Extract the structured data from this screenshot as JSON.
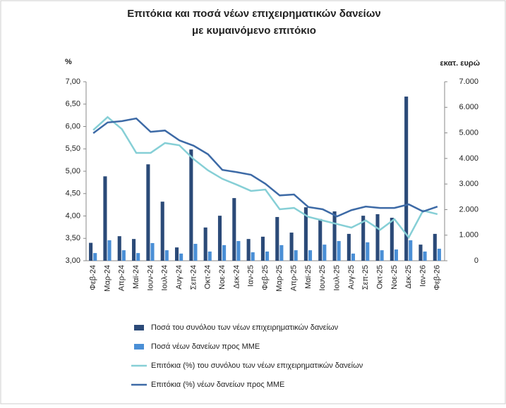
{
  "chart_data": {
    "type": "bar-line",
    "title": "Επιτόκια και ποσά νέων επιχειρηματικών δανείων με κυμαινόμενο επιτόκιο",
    "y_label": "%",
    "y2_label": "εκατ. ευρώ",
    "categories": [
      "Φεβ-24",
      "Μαρ-24",
      "Απρ-24",
      "Μαϊ-24",
      "Ιουν-24",
      "Ιουλ-24",
      "Αυγ-24",
      "Σεπ-24",
      "Οκτ-24",
      "Νοε-24",
      "Δεκ-24",
      "Ιαν-25",
      "Φεβ-25",
      "Μαρ-25",
      "Απρ-25",
      "Μαϊ-25",
      "Ιουν-25",
      "Ιουλ-25",
      "Αυγ-25",
      "Σεπ-25",
      "Οκτ-25",
      "Νοε-25",
      "Δεκ-25",
      "Ιαν-26",
      "Φεβ-26"
    ],
    "ylim": [
      3,
      7
    ],
    "yticks": [
      {
        "value": 3,
        "label": "3,00"
      },
      {
        "value": 3.5,
        "label": "3,50"
      },
      {
        "value": 4,
        "label": "4,00"
      },
      {
        "value": 4.5,
        "label": "4,50"
      },
      {
        "value": 5,
        "label": "5,00"
      },
      {
        "value": 5.5,
        "label": "5,50"
      },
      {
        "value": 6,
        "label": "6,00"
      },
      {
        "value": 6.5,
        "label": "6,50"
      },
      {
        "value": 7,
        "label": "7,00"
      }
    ],
    "y2lim": [
      0,
      7000
    ],
    "y2ticks": [
      0,
      {
        "value": 1000,
        "label": "1.000"
      },
      {
        "value": 2000,
        "label": "2.000"
      },
      {
        "value": 3000,
        "label": "3.000"
      },
      {
        "value": 4000,
        "label": "4.000"
      },
      {
        "value": 5000,
        "label": "5.000"
      },
      {
        "value": 6000,
        "label": "6.000"
      },
      {
        "value": 7000,
        "label": "7.000"
      }
    ],
    "legend": "bottom",
    "series": [
      {
        "name": "Ποσά του συνόλου των νέων επιχειρηματικών δανείων",
        "type": "bar",
        "axis": "y2",
        "color": "#2b4a78",
        "values": [
          700,
          3300,
          960,
          850,
          3770,
          2310,
          520,
          4350,
          1300,
          1760,
          2450,
          850,
          940,
          1710,
          1100,
          2090,
          1630,
          1930,
          1050,
          1760,
          1820,
          1680,
          6420,
          630,
          1050
        ]
      },
      {
        "name": "Ποσά νέων δανείων προς ΜΜΕ",
        "type": "bar",
        "axis": "y2",
        "color": "#4a8fd6",
        "values": [
          300,
          800,
          410,
          300,
          690,
          410,
          280,
          660,
          360,
          610,
          770,
          330,
          360,
          610,
          410,
          410,
          630,
          770,
          280,
          720,
          410,
          440,
          800,
          360,
          470
        ]
      },
      {
        "name": "Επιτόκια (%) του συνόλου των νέων επιχειρηματικών δανείων",
        "type": "line",
        "color": "#86cfd6",
        "values": [
          5.92,
          6.21,
          5.94,
          5.41,
          5.41,
          5.63,
          5.58,
          5.27,
          5.02,
          4.83,
          4.7,
          4.56,
          4.59,
          4.15,
          4.18,
          3.98,
          3.9,
          3.82,
          3.74,
          3.9,
          3.69,
          3.93,
          3.52,
          4.12,
          4.04
        ]
      },
      {
        "name": "Επιτόκια (%) νέων δανείων προς ΜΜΕ",
        "type": "line",
        "color": "#3d6aa6",
        "values": [
          5.85,
          6.09,
          6.12,
          6.18,
          5.88,
          5.91,
          5.69,
          5.57,
          5.38,
          5.03,
          4.98,
          4.92,
          4.72,
          4.46,
          4.48,
          4.2,
          4.15,
          3.99,
          4.13,
          4.21,
          4.18,
          4.18,
          4.26,
          4.1,
          4.21
        ]
      }
    ]
  }
}
